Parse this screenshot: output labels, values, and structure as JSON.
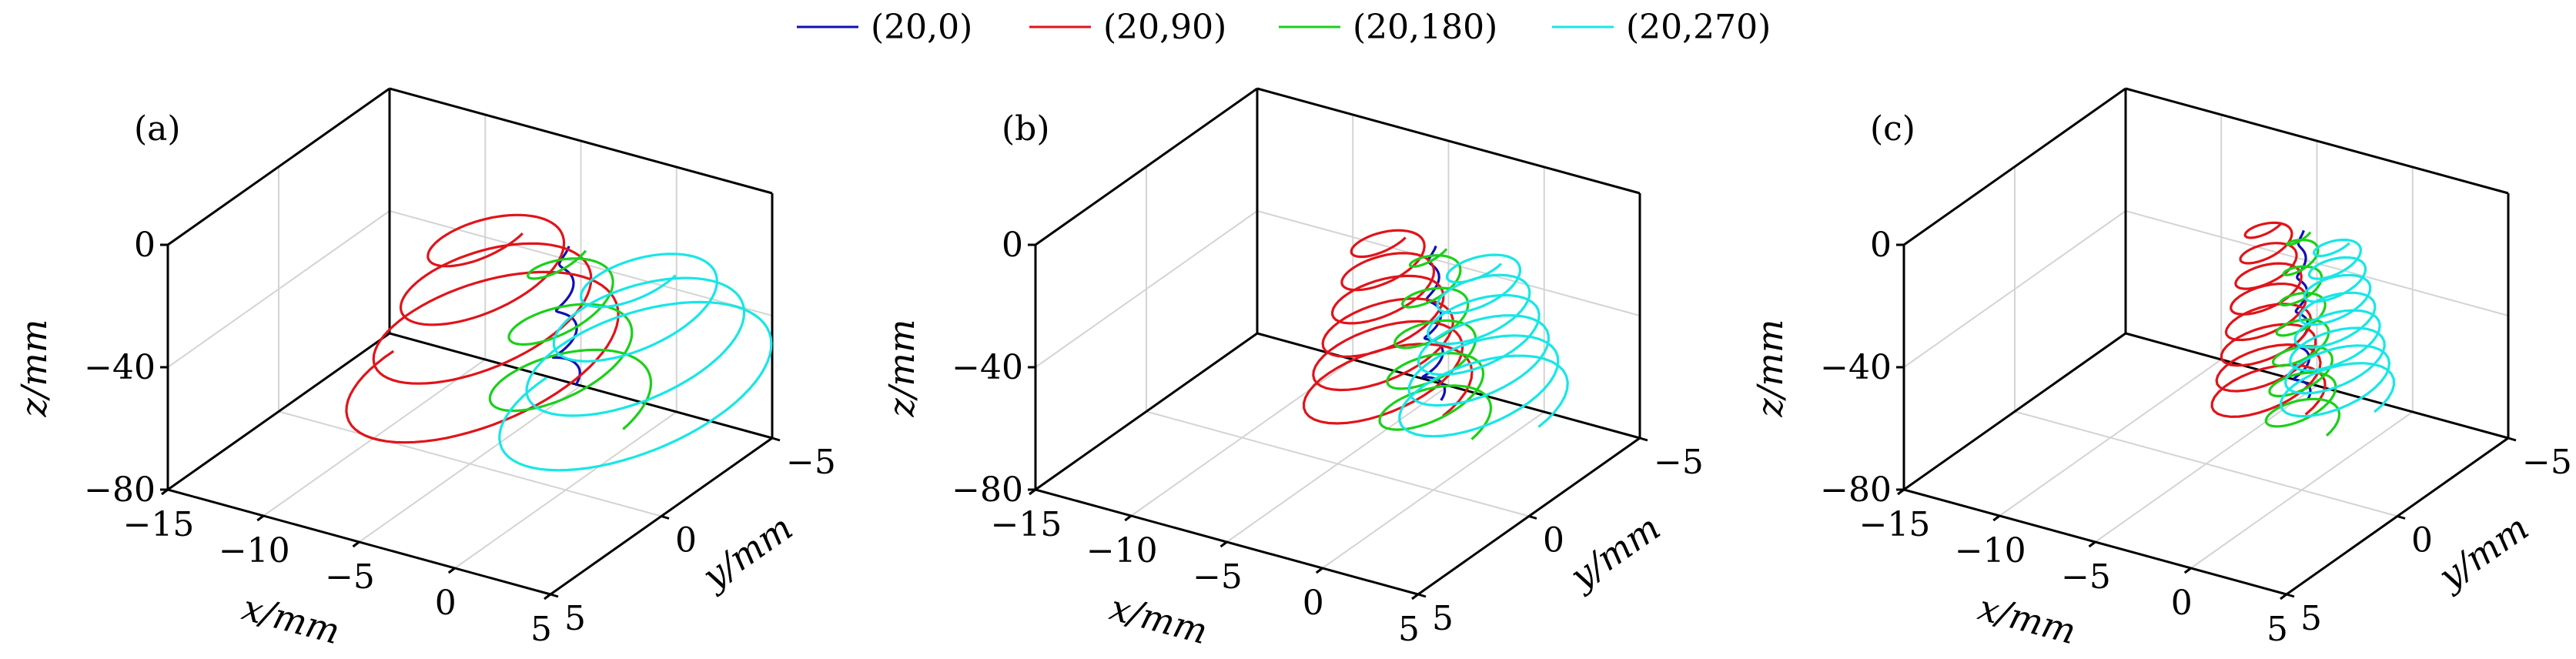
{
  "colors": {
    "(20,0)": "#1010b4",
    "(20,90)": "#e0141a",
    "(20,180)": "#1ad01a",
    "(20,270)": "#18e6e6",
    "axis": "#000000",
    "grid": "#d4d4d4"
  },
  "legend": [
    {
      "label": "(20,0)",
      "color": "#1010b4"
    },
    {
      "label": "(20,90)",
      "color": "#e0141a"
    },
    {
      "label": "(20,180)",
      "color": "#1ad01a"
    },
    {
      "label": "(20,270)",
      "color": "#18e6e6"
    }
  ],
  "chart_data": [
    {
      "type": "line",
      "panel": "(a)",
      "xlabel": "x/mm",
      "ylabel": "y/mm",
      "zlabel": "z/mm",
      "xlim": [
        -15,
        5
      ],
      "ylim": [
        5,
        -5
      ],
      "zlim": [
        -80,
        0
      ],
      "xticks": [
        "−15",
        "−10",
        "−5",
        "0",
        "5"
      ],
      "yticks": [
        "5",
        "0",
        "−5"
      ],
      "zticks": [
        "−80",
        "−40",
        "0"
      ],
      "grid": true,
      "series": [
        {
          "name": "(20,0)",
          "x0": 0,
          "y0": 0,
          "z0": 0,
          "radius": 0.5,
          "turns": 3,
          "zend": -45
        },
        {
          "name": "(20,90)",
          "x0": -4,
          "y0": 0,
          "z0": 0,
          "radius": 5,
          "turns": 3.5,
          "zend": -50
        },
        {
          "name": "(20,180)",
          "x0": 0,
          "y0": 0,
          "z0": 0,
          "radius": 3,
          "turns": 3,
          "zend": -55
        },
        {
          "name": "(20,270)",
          "x0": 4,
          "y0": 0,
          "z0": 0,
          "radius": 5,
          "turns": 3.5,
          "zend": -45
        }
      ]
    },
    {
      "type": "line",
      "panel": "(b)",
      "xlabel": "x/mm",
      "ylabel": "y/mm",
      "zlabel": "z/mm",
      "xlim": [
        -15,
        5
      ],
      "ylim": [
        5,
        -5
      ],
      "zlim": [
        -80,
        0
      ],
      "xticks": [
        "−15",
        "−10",
        "−5",
        "0",
        "5"
      ],
      "yticks": [
        "5",
        "0",
        "−5"
      ],
      "zticks": [
        "−80",
        "−40",
        "0"
      ],
      "grid": true,
      "series": [
        {
          "name": "(20,0)",
          "x0": 0,
          "y0": 0,
          "z0": 0,
          "radius": 0.4,
          "turns": 4,
          "zend": -50
        },
        {
          "name": "(20,90)",
          "x0": -2.5,
          "y0": 0,
          "z0": 0,
          "radius": 3,
          "turns": 6,
          "zend": -55
        },
        {
          "name": "(20,180)",
          "x0": 0,
          "y0": 0,
          "z0": 0,
          "radius": 2,
          "turns": 5,
          "zend": -60
        },
        {
          "name": "(20,270)",
          "x0": 2.5,
          "y0": 0,
          "z0": 0,
          "radius": 3,
          "turns": 6,
          "zend": -50
        }
      ]
    },
    {
      "type": "line",
      "panel": "(c)",
      "xlabel": "x/mm",
      "ylabel": "y/mm",
      "zlabel": "z/mm",
      "xlim": [
        -15,
        5
      ],
      "ylim": [
        5,
        -5
      ],
      "zlim": [
        -80,
        0
      ],
      "xticks": [
        "−15",
        "−10",
        "−5",
        "0",
        "5"
      ],
      "yticks": [
        "5",
        "0",
        "−5"
      ],
      "zticks": [
        "−80",
        "−40",
        "0"
      ],
      "grid": true,
      "series": [
        {
          "name": "(20,0)",
          "x0": 0,
          "y0": 0,
          "z0": 5,
          "radius": 0.3,
          "turns": 5,
          "zend": -50
        },
        {
          "name": "(20,90)",
          "x0": -1.8,
          "y0": 0,
          "z0": 5,
          "radius": 2,
          "turns": 8,
          "zend": -55
        },
        {
          "name": "(20,180)",
          "x0": 0,
          "y0": 0,
          "z0": 5,
          "radius": 1.3,
          "turns": 7,
          "zend": -60
        },
        {
          "name": "(20,270)",
          "x0": 1.8,
          "y0": 0,
          "z0": 5,
          "radius": 2,
          "turns": 8,
          "zend": -48
        }
      ]
    }
  ]
}
